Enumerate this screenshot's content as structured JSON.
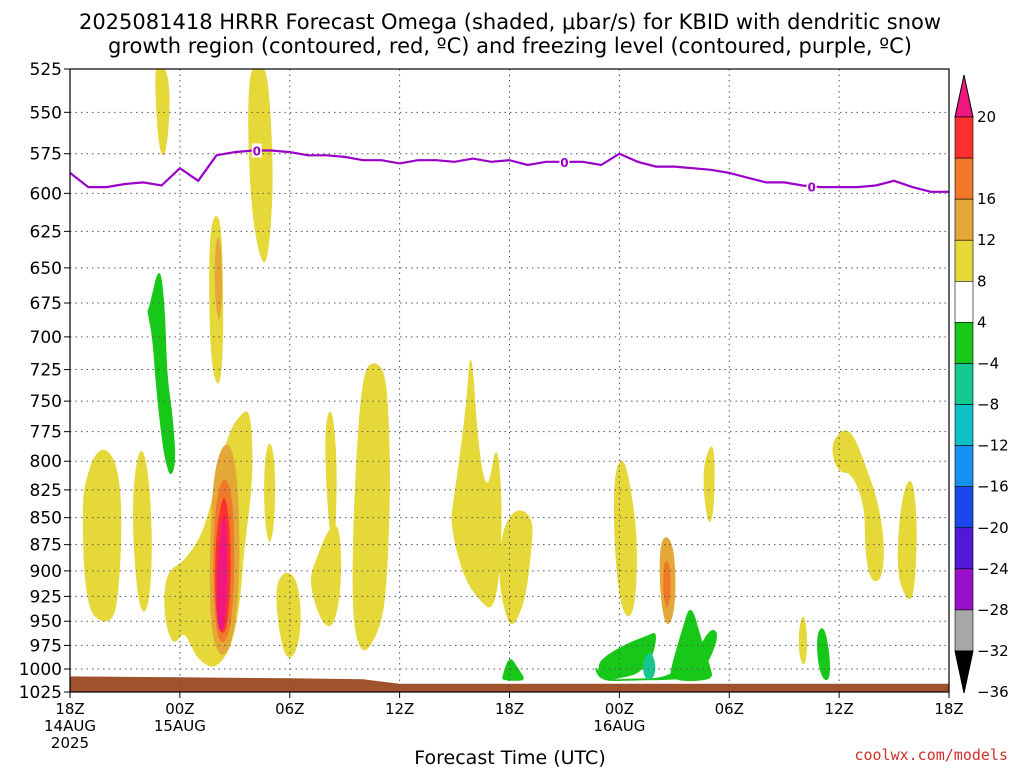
{
  "title": {
    "line1": "2025081418 HRRR Forecast Omega (shaded, μbar/s) for KBID with dendritic snow",
    "line2": "growth region (contoured, red, ºC) and freezing level (contoured, purple, ºC)"
  },
  "credit": "coolwx.com/models",
  "colors": {
    "freezing_level": "#9a00c8",
    "ground": "#a0522d",
    "grid": "#555555"
  },
  "chart_data": {
    "type": "heatmap",
    "title": "2025081418 HRRR Forecast Omega (shaded, μbar/s) for KBID with dendritic snow growth region (contoured, red, ºC) and freezing level (contoured, purple, ºC)",
    "xlabel": "Forecast Time (UTC)",
    "ylabel": "",
    "x_unit": "hours since 2025-08-14 18Z",
    "xlim": [
      0,
      48
    ],
    "ylim": [
      1025,
      525
    ],
    "y_scale": "log-pressure",
    "grid": true,
    "legend": "right colorbar",
    "y_ticks": [
      525,
      550,
      575,
      600,
      625,
      650,
      675,
      700,
      725,
      750,
      775,
      800,
      825,
      850,
      875,
      900,
      925,
      950,
      975,
      1000,
      1025
    ],
    "x_ticks": [
      {
        "x": 0,
        "lines": [
          "18Z",
          "14AUG",
          "2025"
        ]
      },
      {
        "x": 6,
        "lines": [
          "00Z",
          "15AUG"
        ]
      },
      {
        "x": 12,
        "lines": [
          "06Z"
        ]
      },
      {
        "x": 18,
        "lines": [
          "12Z"
        ]
      },
      {
        "x": 24,
        "lines": [
          "18Z"
        ]
      },
      {
        "x": 30,
        "lines": [
          "00Z",
          "16AUG"
        ]
      },
      {
        "x": 36,
        "lines": [
          "06Z"
        ]
      },
      {
        "x": 42,
        "lines": [
          "12Z"
        ]
      },
      {
        "x": 48,
        "lines": [
          "18Z"
        ]
      }
    ],
    "colorbar": {
      "labels": [
        "20",
        "16",
        "12",
        "8",
        "4",
        "−4",
        "−8",
        "−12",
        "−16",
        "−20",
        "−24",
        "−28",
        "−32",
        "−36"
      ],
      "bands": [
        {
          "min": 16,
          "max": 20,
          "color": "#ff3030"
        },
        {
          "min": 12,
          "max": 16,
          "color": "#f07828"
        },
        {
          "min": 8,
          "max": 12,
          "color": "#e4a838"
        },
        {
          "min": 4,
          "max": 8,
          "color": "#e6d838"
        },
        {
          "min": -4,
          "max": 4,
          "color": "#ffffff"
        },
        {
          "min": -8,
          "max": -4,
          "color": "#18c818"
        },
        {
          "min": -12,
          "max": -8,
          "color": "#14c890"
        },
        {
          "min": -16,
          "max": -12,
          "color": "#10c0c8"
        },
        {
          "min": -20,
          "max": -16,
          "color": "#1890f0"
        },
        {
          "min": -24,
          "max": -20,
          "color": "#1848e8"
        },
        {
          "min": -28,
          "max": -24,
          "color": "#5018d8"
        },
        {
          "min": -32,
          "max": -28,
          "color": "#9a10c8"
        },
        {
          "min": -36,
          "max": -32,
          "color": "#a8a8a8"
        }
      ],
      "top_arrow_color": "#f01880",
      "bottom_arrow_color": "#000000"
    },
    "freezing_level": {
      "label": "0",
      "label_at_x": [
        10.2,
        27,
        40.5
      ],
      "x": [
        0,
        1,
        2,
        3,
        4,
        5,
        6,
        7,
        8,
        9,
        10,
        11,
        12,
        13,
        14,
        15,
        16,
        17,
        18,
        19,
        20,
        21,
        22,
        23,
        24,
        25,
        26,
        27,
        28,
        29,
        30,
        31,
        32,
        33,
        34,
        35,
        36,
        37,
        38,
        39,
        40,
        41,
        42,
        43,
        44,
        45,
        46,
        47,
        48
      ],
      "p": [
        587,
        596,
        596,
        594,
        593,
        595,
        584,
        592,
        576,
        574,
        573,
        573,
        574,
        576,
        576,
        577,
        579,
        579,
        581,
        579,
        579,
        580,
        578,
        580,
        579,
        582,
        580,
        580,
        580,
        582,
        575,
        580,
        583,
        583,
        584,
        585,
        587,
        590,
        593,
        593,
        595,
        596,
        596,
        596,
        595,
        592,
        596,
        599,
        599
      ]
    },
    "ground_pressure": {
      "x": [
        0,
        6,
        12,
        16,
        18,
        24,
        30,
        36,
        42,
        48
      ],
      "p": [
        1008,
        1009,
        1010,
        1011,
        1016,
        1016,
        1016,
        1016,
        1016,
        1016
      ]
    },
    "omega_regions": [
      {
        "value": 5,
        "x": [
          0.9,
          1.3,
          1.9,
          2.5,
          2.8,
          2.8,
          2.6,
          2.3,
          1.6,
          1.1,
          0.8,
          0.7,
          0.7
        ],
        "p": [
          815,
          795,
          788,
          800,
          830,
          880,
          930,
          950,
          950,
          940,
          910,
          870,
          830
        ]
      },
      {
        "value": 5,
        "x": [
          3.5,
          3.9,
          4.3,
          4.5,
          4.4,
          4.1,
          3.7,
          3.4
        ],
        "p": [
          810,
          785,
          810,
          870,
          920,
          945,
          930,
          860
        ]
      },
      {
        "value": 5,
        "x": [
          4.6,
          4.9,
          5.3,
          5.5,
          5.2,
          4.8
        ],
        "p": [
          525,
          525,
          525,
          545,
          580,
          570
        ]
      },
      {
        "value": 5,
        "x": [
          7.6,
          7.9,
          8.3,
          8.4,
          8.2,
          7.8,
          7.6
        ],
        "p": [
          630,
          612,
          620,
          700,
          740,
          730,
          690
        ]
      },
      {
        "value": 5,
        "x": [
          5.3,
          6.3,
          7.4,
          8.2,
          8.8,
          9.2,
          9.8,
          10.0,
          9.9,
          9.5,
          9.3,
          8.9,
          8.4,
          7.8,
          7.0,
          6.6,
          6.2,
          5.7,
          5.3,
          5.1
        ],
        "p": [
          900,
          890,
          860,
          800,
          772,
          763,
          755,
          790,
          830,
          880,
          930,
          970,
          990,
          1000,
          990,
          975,
          960,
          975,
          960,
          930
        ]
      },
      {
        "value": 5,
        "x": [
          9.8,
          10.3,
          10.8,
          11.1,
          11.0,
          10.7,
          10.3,
          9.9,
          9.7
        ],
        "p": [
          525,
          525,
          525,
          580,
          620,
          650,
          640,
          610,
          560
        ]
      },
      {
        "value": 5,
        "x": [
          10.6,
          10.9,
          11.2,
          11.2,
          10.9,
          10.6
        ],
        "p": [
          800,
          780,
          800,
          850,
          880,
          850
        ]
      },
      {
        "value": 5,
        "x": [
          11.2,
          11.7,
          12.3,
          12.6,
          12.6,
          12.3,
          11.8,
          11.4
        ],
        "p": [
          915,
          900,
          905,
          930,
          960,
          985,
          990,
          960
        ]
      },
      {
        "value": 5,
        "x": [
          13.3,
          14.1,
          14.6,
          14.8,
          14.8,
          14.4,
          13.9,
          13.4,
          13.1
        ],
        "p": [
          895,
          860,
          855,
          875,
          920,
          955,
          955,
          935,
          910
        ]
      },
      {
        "value": 5,
        "x": [
          13.9,
          14.3,
          14.6,
          14.5,
          14.3,
          14.0
        ],
        "p": [
          770,
          752,
          800,
          870,
          880,
          830
        ]
      },
      {
        "value": 5,
        "x": [
          16.0,
          16.7,
          17.3,
          17.5,
          17.4,
          17.2,
          17.0,
          16.6,
          16.0,
          15.5,
          15.4,
          15.6
        ],
        "p": [
          725,
          718,
          730,
          800,
          880,
          930,
          950,
          970,
          985,
          960,
          900,
          800
        ]
      },
      {
        "value": 5,
        "x": [
          20.9,
          21.6,
          21.9,
          22.3,
          22.8,
          23.3,
          23.6,
          23.5,
          23.1,
          22.4,
          21.6,
          21.0,
          20.8
        ],
        "p": [
          840,
          760,
          700,
          790,
          830,
          780,
          830,
          900,
          940,
          930,
          910,
          875,
          850
        ]
      },
      {
        "value": 5,
        "x": [
          23.6,
          24.4,
          25.3,
          25.2,
          24.9,
          24.4,
          24.0,
          23.6,
          23.4
        ],
        "p": [
          860,
          840,
          850,
          880,
          925,
          950,
          955,
          930,
          900
        ]
      },
      {
        "value": 5,
        "x": [
          29.7,
          30.2,
          30.6,
          31.0,
          30.9,
          30.5,
          30.0,
          29.7
        ],
        "p": [
          810,
          795,
          820,
          870,
          930,
          950,
          930,
          870
        ]
      },
      {
        "value": 5,
        "x": [
          34.6,
          35.2,
          35.2,
          34.9,
          34.6
        ],
        "p": [
          800,
          780,
          840,
          860,
          830
        ]
      },
      {
        "value": 5,
        "x": [
          41.7,
          42.6,
          43.6,
          44.2,
          44.5,
          44.3,
          43.7,
          43.4,
          43.4,
          42.7,
          42.0,
          41.6
        ],
        "p": [
          780,
          770,
          810,
          840,
          880,
          910,
          910,
          880,
          840,
          810,
          810,
          795
        ]
      },
      {
        "value": 5,
        "x": [
          45.4,
          46.0,
          46.3,
          46.1,
          45.7,
          45.1
        ],
        "p": [
          830,
          810,
          860,
          925,
          930,
          900
        ]
      },
      {
        "value": 5,
        "x": [
          39.8,
          40.1,
          40.3,
          40.1,
          39.8
        ],
        "p": [
          955,
          940,
          975,
          1000,
          985
        ]
      },
      {
        "value": 9,
        "x": [
          7.8,
          8.5,
          9.1,
          9.3,
          9.1,
          8.6,
          8.1,
          7.7,
          7.6
        ],
        "p": [
          810,
          780,
          800,
          880,
          950,
          985,
          985,
          960,
          900
        ]
      },
      {
        "value": 9,
        "x": [
          7.9,
          8.1,
          8.3,
          8.3,
          8.1,
          7.9
        ],
        "p": [
          640,
          625,
          640,
          680,
          690,
          670
        ]
      },
      {
        "value": 9,
        "x": [
          32.2,
          32.6,
          33.0,
          33.1,
          32.9,
          32.5,
          32.2
        ],
        "p": [
          875,
          865,
          880,
          920,
          950,
          955,
          920
        ]
      },
      {
        "value": 13,
        "x": [
          7.9,
          8.4,
          8.9,
          9.0,
          8.8,
          8.4,
          8.0,
          7.8
        ],
        "p": [
          840,
          810,
          830,
          900,
          955,
          975,
          965,
          910
        ]
      },
      {
        "value": 13,
        "x": [
          32.4,
          32.6,
          32.8,
          32.8,
          32.6,
          32.4
        ],
        "p": [
          895,
          888,
          900,
          925,
          940,
          925
        ]
      },
      {
        "value": 17,
        "x": [
          8.0,
          8.4,
          8.7,
          8.8,
          8.6,
          8.3,
          8.0,
          7.9
        ],
        "p": [
          860,
          825,
          850,
          905,
          955,
          965,
          950,
          905
        ]
      },
      {
        "value": 22,
        "x": [
          8.1,
          8.4,
          8.6,
          8.6,
          8.4,
          8.1,
          8.0
        ],
        "p": [
          880,
          840,
          870,
          920,
          960,
          960,
          925
        ]
      },
      {
        "value": -6,
        "x": [
          4.3,
          4.9,
          5.2,
          5.3,
          5.6,
          5.8,
          5.5,
          5.2,
          5.0,
          4.7,
          4.5,
          4.2
        ],
        "p": [
          680,
          645,
          680,
          730,
          760,
          800,
          815,
          800,
          780,
          740,
          700,
          680
        ]
      },
      {
        "value": -6,
        "x": [
          23.6,
          24.0,
          24.5,
          24.9,
          24.3,
          23.6
        ],
        "p": [
          1008,
          985,
          1000,
          1012,
          1013,
          1012
        ]
      },
      {
        "value": -6,
        "x": [
          29.3,
          30.7,
          32.5,
          34.0,
          35.0,
          35.5,
          34.5,
          33.0,
          31.5,
          30.0,
          29.3,
          28.8,
          28.6
        ],
        "p": [
          1012,
          1010,
          1010,
          990,
          955,
          965,
          1008,
          1012,
          1012,
          1013,
          1013,
          1008,
          995
        ]
      },
      {
        "value": -6,
        "x": [
          29.3,
          30.5,
          31.5,
          32.1,
          31.8,
          31.0,
          30.5,
          30.0,
          29.5,
          29.0,
          28.8
        ],
        "p": [
          985,
          972,
          965,
          960,
          990,
          1005,
          1008,
          1010,
          1012,
          1010,
          995
        ]
      },
      {
        "value": -6,
        "x": [
          32.8,
          33.4,
          33.9,
          34.5,
          35.0,
          35.1,
          34.3,
          33.3,
          32.8
        ],
        "p": [
          1000,
          960,
          930,
          970,
          1000,
          1010,
          1013,
          1013,
          1008
        ]
      },
      {
        "value": -6,
        "x": [
          40.8,
          41.2,
          41.5,
          41.5,
          41.1,
          40.8
        ],
        "p": [
          960,
          955,
          985,
          1012,
          1012,
          990
        ]
      },
      {
        "value": -10,
        "x": [
          31.3,
          31.7,
          32.0,
          31.9,
          31.5,
          31.3
        ],
        "p": [
          990,
          980,
          995,
          1010,
          1012,
          1005
        ]
      }
    ]
  }
}
